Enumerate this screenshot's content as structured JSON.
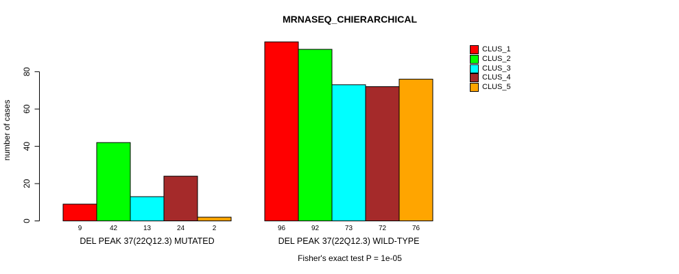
{
  "chart_data": {
    "type": "bar",
    "title": "MRNASEQ_CHIERARCHICAL",
    "ylabel": "number of cases",
    "yticks": [
      0,
      20,
      40,
      60,
      80
    ],
    "ylim": [
      0,
      97
    ],
    "grid": false,
    "legend_position": "top-right",
    "bar_value_labels_shown": true,
    "bar_border_color": "#000000",
    "categories": [
      "DEL PEAK 37(22Q12.3) MUTATED",
      "DEL PEAK 37(22Q12.3) WILD-TYPE"
    ],
    "series": [
      {
        "name": "CLUS_1",
        "color": "#FF0000",
        "values": [
          9,
          96
        ]
      },
      {
        "name": "CLUS_2",
        "color": "#00FF00",
        "values": [
          42,
          92
        ]
      },
      {
        "name": "CLUS_3",
        "color": "#00FFFF",
        "values": [
          13,
          73
        ]
      },
      {
        "name": "CLUS_4",
        "color": "#A52A2A",
        "values": [
          24,
          72
        ]
      },
      {
        "name": "CLUS_5",
        "color": "#FFA500",
        "values": [
          2,
          76
        ]
      }
    ],
    "annotation": "Fisher's exact test P = 1e-05"
  }
}
